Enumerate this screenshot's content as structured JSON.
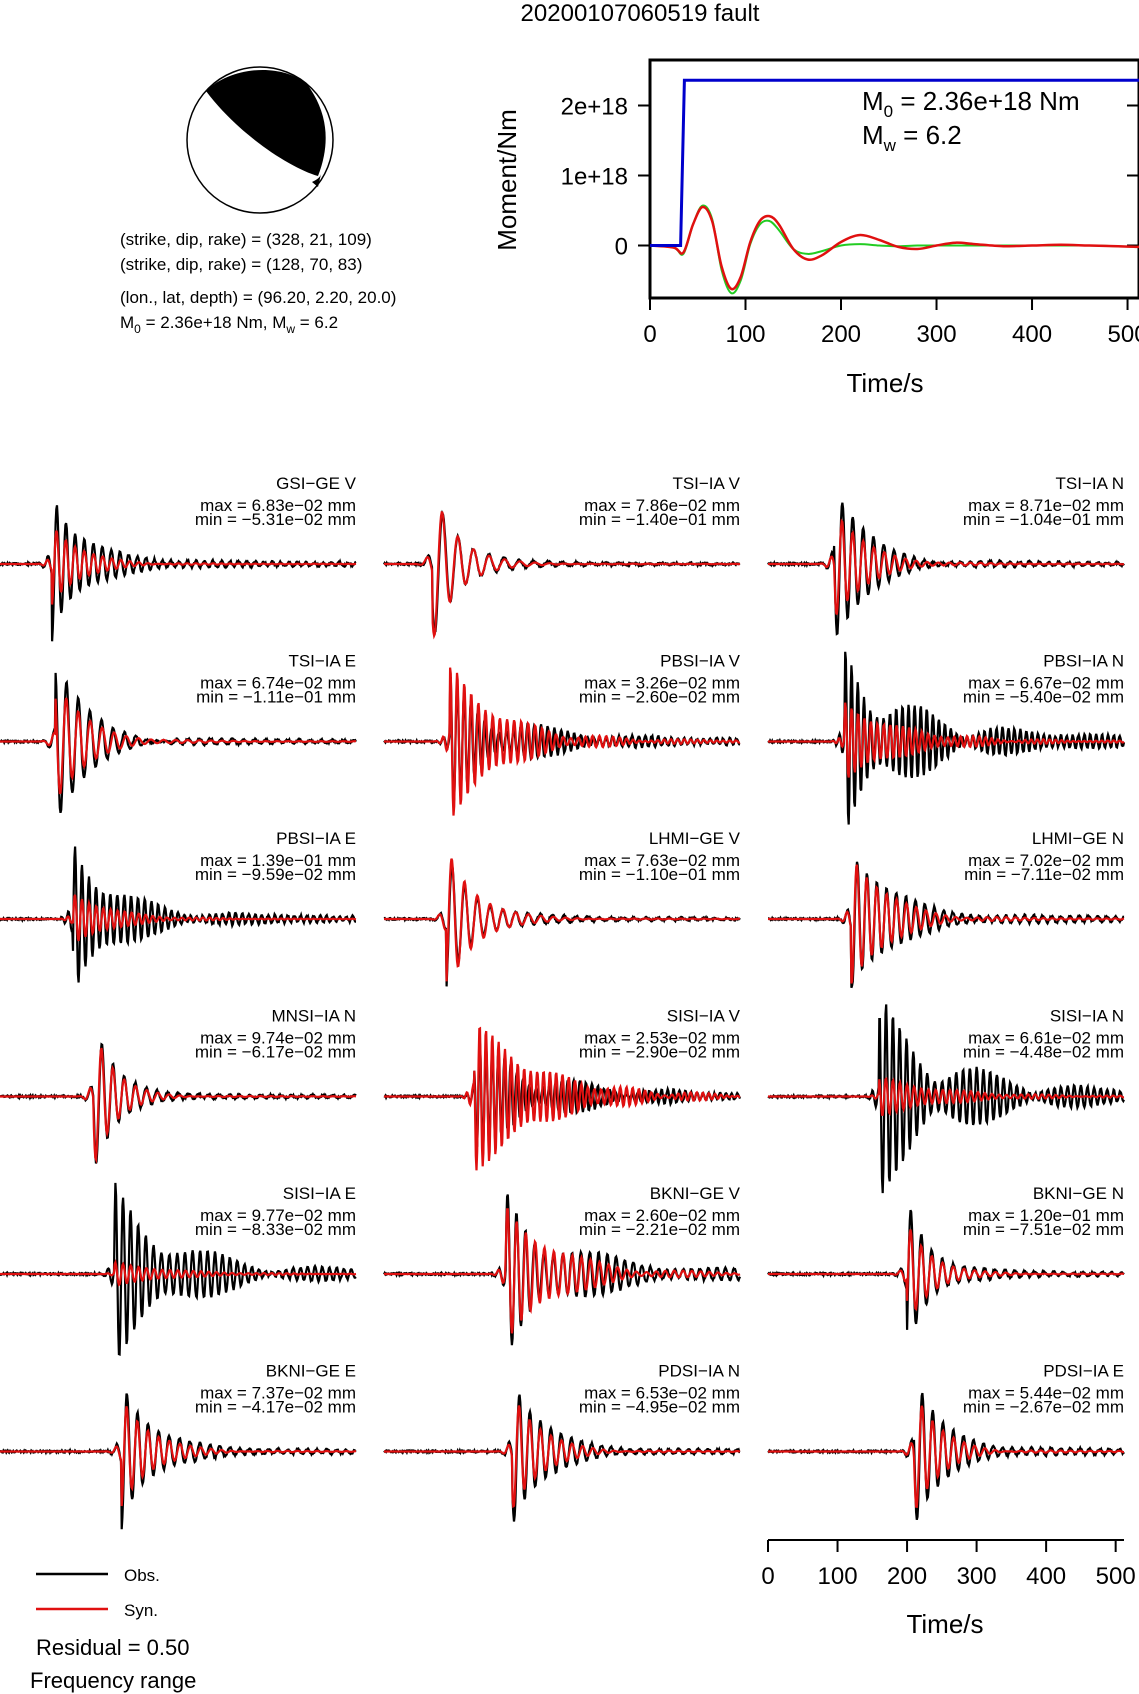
{
  "title": "20200107060519 fault",
  "mechanism": {
    "planes": [
      {
        "strike": 328,
        "dip": 21,
        "rake": 109
      },
      {
        "strike": 128,
        "dip": 70,
        "rake": 83
      }
    ],
    "text_plane1": "(strike, dip, rake) = (328, 21, 109)",
    "text_plane2": "(strike, dip, rake) = (128, 70, 83)",
    "text_location": "(lon., lat, depth) = (96.20, 2.20, 20.0)",
    "text_moment_prefix": "M",
    "text_moment_sub0": "0",
    "text_moment_mid": " = 2.36e+18 Nm, M",
    "text_moment_subw": "w",
    "text_moment_suffix": " = 6.2"
  },
  "chart_data": [
    {
      "type": "line",
      "name": "moment-rate",
      "ylabel": "Moment/Nm",
      "xlabel": "Time/s",
      "xlim": [
        0,
        512
      ],
      "ylim": [
        -7.5e+17,
        2.65e+18
      ],
      "xticks": [
        0,
        100,
        200,
        300,
        400,
        500
      ],
      "xtick_labels": [
        "0",
        "100",
        "200",
        "300",
        "400",
        "500"
      ],
      "yticks": [
        0,
        1e+18,
        2e+18
      ],
      "ytick_labels": [
        "0",
        "1e+18",
        "2e+18"
      ],
      "annotation_m0_prefix": "M",
      "annotation_m0_sub": "0",
      "annotation_m0_value": " = 2.36e+18 Nm",
      "annotation_mw_prefix": "M",
      "annotation_mw_sub": "w",
      "annotation_mw_value": " = 6.2",
      "colors": {
        "cumulative": "#0000cc",
        "red": "#e01010",
        "green": "#22cc22"
      },
      "cumulative": {
        "x": [
          0,
          32,
          36,
          512
        ],
        "y": [
          0,
          0,
          2.36e+18,
          2.36e+18
        ]
      },
      "red": {
        "x": [
          0,
          25,
          35,
          45,
          55,
          65,
          75,
          85,
          95,
          105,
          115,
          125,
          135,
          150,
          165,
          180,
          200,
          220,
          240,
          260,
          280,
          300,
          320,
          340,
          370,
          400,
          430,
          460,
          490,
          512
        ],
        "y": [
          0,
          -3e+16,
          -1e+17,
          3e+17,
          5.5e+17,
          3.5e+17,
          -3e+17,
          -6.2e+17,
          -4.5e+17,
          5e+16,
          3.5e+17,
          4.2e+17,
          3e+17,
          -5e+16,
          -2e+17,
          -1.4e+17,
          5e+16,
          1.5e+17,
          8e+16,
          -2e+16,
          -5e+16,
          0.0,
          4e+16,
          2e+16,
          -1e+16,
          0.0,
          1e+16,
          0.0,
          -1e+16,
          -2e+16
        ]
      },
      "green": {
        "x": [
          0,
          25,
          35,
          45,
          55,
          65,
          75,
          85,
          95,
          105,
          115,
          125,
          135,
          150,
          165,
          180,
          200,
          220,
          240,
          260,
          280,
          300,
          320,
          340,
          370,
          400,
          430,
          460,
          490,
          512
        ],
        "y": [
          0,
          -3e+16,
          -1.2e+17,
          3e+17,
          5.7e+17,
          3.8e+17,
          -3.5e+17,
          -6.8e+17,
          -5e+17,
          2e+16,
          3e+17,
          3.5e+17,
          2.2e+17,
          -5e+16,
          -1.2e+17,
          -8e+16,
          0.0,
          2e+16,
          0.0,
          -1e+16,
          0.0,
          0.0,
          0.0,
          0.0,
          0.0,
          0.0,
          0.0,
          0.0,
          -1e+16,
          -2e+16
        ]
      }
    },
    {
      "type": "line",
      "name": "waveform-fits",
      "xlabel": "Time/s",
      "xlim": [
        0,
        512
      ],
      "xticks": [
        0,
        100,
        200,
        300,
        400,
        500
      ],
      "xtick_labels": [
        "0",
        "100",
        "200",
        "300",
        "400",
        "500"
      ],
      "legend": {
        "obs": "Obs.",
        "syn": "Syn.",
        "position": "bottom-left"
      },
      "colors": {
        "obs": "#000000",
        "syn": "#e01010"
      },
      "stations": [
        {
          "label": "GSI−GE V",
          "max": "max = 6.83e−02 mm",
          "min": "min = −5.31e−02 mm",
          "onset": 75,
          "period": 13,
          "decay": 40,
          "obs_amp": 1.0,
          "syn_amp": 0.55,
          "coda": 0.1
        },
        {
          "label": "TSI−IA V",
          "max": "max = 7.86e−02 mm",
          "min": "min = −1.40e−01 mm",
          "onset": 70,
          "period": 22,
          "decay": 35,
          "obs_amp": 1.0,
          "syn_amp": 1.05,
          "coda": 0.04
        },
        {
          "label": "TSI−IA N",
          "max": "max = 8.71e−02 mm",
          "min": "min = −1.04e−01 mm",
          "onset": 95,
          "period": 15,
          "decay": 45,
          "obs_amp": 1.0,
          "syn_amp": 0.75,
          "coda": 0.08
        },
        {
          "label": "TSI−IA E",
          "max": "max = 6.74e−02 mm",
          "min": "min = −1.11e−01 mm",
          "onset": 80,
          "period": 17,
          "decay": 45,
          "obs_amp": 1.0,
          "syn_amp": 0.8,
          "coda": 0.08
        },
        {
          "label": "PBSI−IA V",
          "max": "max = 3.26e−02 mm",
          "min": "min = −2.60e−02 mm",
          "onset": 95,
          "period": 10,
          "decay": 70,
          "obs_amp": 0.7,
          "syn_amp": 1.0,
          "coda": 0.25
        },
        {
          "label": "PBSI−IA N",
          "max": "max = 6.67e−02 mm",
          "min": "min = −5.40e−02 mm",
          "onset": 110,
          "period": 9,
          "decay": 80,
          "obs_amp": 1.0,
          "syn_amp": 0.5,
          "coda": 0.3
        },
        {
          "label": "PBSI−IA E",
          "max": "max = 1.39e−01 mm",
          "min": "min = −9.59e−02 mm",
          "onset": 105,
          "period": 10,
          "decay": 55,
          "obs_amp": 1.0,
          "syn_amp": 0.35,
          "coda": 0.15
        },
        {
          "label": "LHMI−GE V",
          "max": "max = 7.63e−02 mm",
          "min": "min = −1.10e−01 mm",
          "onset": 90,
          "period": 18,
          "decay": 40,
          "obs_amp": 0.9,
          "syn_amp": 1.0,
          "coda": 0.06
        },
        {
          "label": "LHMI−GE N",
          "max": "max = 7.02e−02 mm",
          "min": "min = −7.11e−02 mm",
          "onset": 120,
          "period": 14,
          "decay": 50,
          "obs_amp": 1.0,
          "syn_amp": 0.9,
          "coda": 0.12
        },
        {
          "label": "MNSI−IA N",
          "max": "max = 9.74e−02 mm",
          "min": "min = −6.17e−02 mm",
          "onset": 135,
          "period": 16,
          "decay": 30,
          "obs_amp": 1.0,
          "syn_amp": 0.95,
          "coda": 0.05
        },
        {
          "label": "SISI−IA V",
          "max": "max = 2.53e−02 mm",
          "min": "min = −2.90e−02 mm",
          "onset": 130,
          "period": 9,
          "decay": 90,
          "obs_amp": 0.6,
          "syn_amp": 1.0,
          "coda": 0.3
        },
        {
          "label": "SISI−IA N",
          "max": "max = 6.61e−02 mm",
          "min": "min = −4.48e−02 mm",
          "onset": 160,
          "period": 10,
          "decay": 90,
          "obs_amp": 1.0,
          "syn_amp": 0.25,
          "coda": 0.3
        },
        {
          "label": "SISI−IA E",
          "max": "max = 9.77e−02 mm",
          "min": "min = −8.33e−02 mm",
          "onset": 165,
          "period": 11,
          "decay": 80,
          "obs_amp": 1.0,
          "syn_amp": 0.15,
          "coda": 0.2
        },
        {
          "label": "BKNI−GE V",
          "max": "max = 2.60e−02 mm",
          "min": "min = −2.21e−02 mm",
          "onset": 175,
          "period": 13,
          "decay": 70,
          "obs_amp": 1.0,
          "syn_amp": 0.9,
          "coda": 0.22
        },
        {
          "label": "BKNI−GE N",
          "max": "max = 1.20e−01 mm",
          "min": "min = −7.51e−02 mm",
          "onset": 200,
          "period": 15,
          "decay": 35,
          "obs_amp": 1.0,
          "syn_amp": 0.7,
          "coda": 0.06
        },
        {
          "label": "BKNI−GE E",
          "max": "max = 7.37e−02 mm",
          "min": "min = −4.17e−02 mm",
          "onset": 175,
          "period": 15,
          "decay": 40,
          "obs_amp": 1.0,
          "syn_amp": 0.75,
          "coda": 0.08
        },
        {
          "label": "PDSI−IA N",
          "max": "max = 6.53e−02 mm",
          "min": "min = −4.95e−02 mm",
          "onset": 185,
          "period": 15,
          "decay": 40,
          "obs_amp": 1.0,
          "syn_amp": 0.8,
          "coda": 0.08
        },
        {
          "label": "PDSI−IA E",
          "max": "max = 5.44e−02 mm",
          "min": "min = −2.67e−02 mm",
          "onset": 210,
          "period": 15,
          "decay": 35,
          "obs_amp": 1.0,
          "syn_amp": 0.85,
          "coda": 0.1
        }
      ]
    }
  ],
  "footer": {
    "residual": "Residual = 0.50",
    "frequency": "Frequency range"
  }
}
